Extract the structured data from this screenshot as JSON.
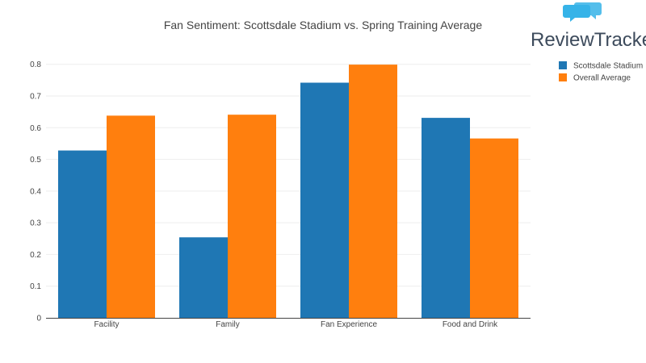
{
  "brand": {
    "name": "ReviewTrackers",
    "logo_icon": "speech-bubbles-icon",
    "logo_color": "#36b3e8"
  },
  "chart_data": {
    "type": "bar",
    "title": "Fan Sentiment: Scottsdale Stadium vs. Spring Training Average",
    "xlabel": "",
    "ylabel": "",
    "categories": [
      "Facility",
      "Family",
      "Fan Experience",
      "Food and Drink"
    ],
    "series": [
      {
        "name": "Scottsdale Stadium",
        "color": "#1f77b4",
        "values": [
          0.528,
          0.254,
          0.742,
          0.631
        ]
      },
      {
        "name": "Overall Average",
        "color": "#ff7f0e",
        "values": [
          0.638,
          0.641,
          0.799,
          0.566
        ]
      }
    ],
    "ylim": [
      0,
      0.84
    ],
    "yticks": [
      "0",
      "0.1",
      "0.2",
      "0.3",
      "0.4",
      "0.5",
      "0.6",
      "0.7",
      "0.8"
    ],
    "ytick_values": [
      0,
      0.1,
      0.2,
      0.3,
      0.4,
      0.5,
      0.6,
      0.7,
      0.8
    ],
    "grid": true,
    "legend_position": "top-right"
  }
}
